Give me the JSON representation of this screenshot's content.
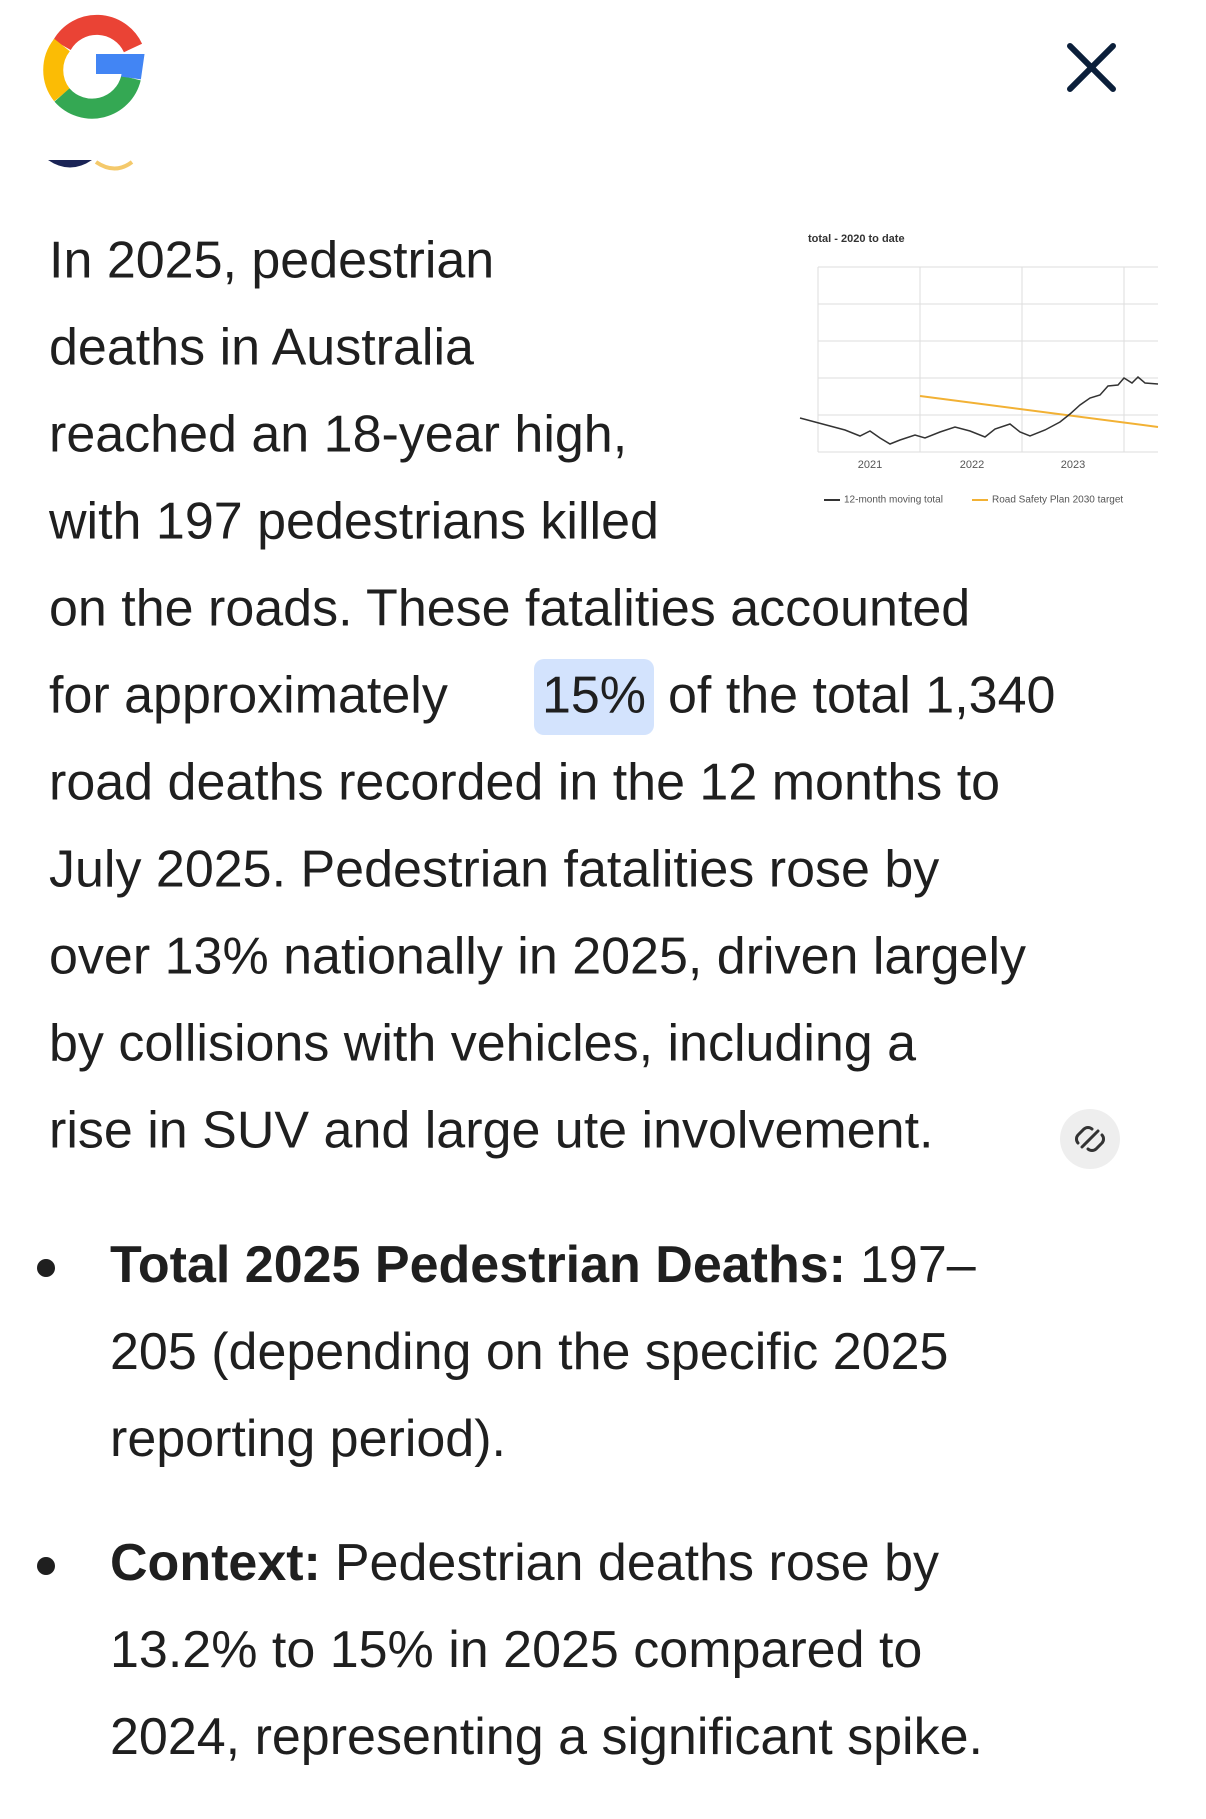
{
  "thumbnail": {
    "title": "total - 2020 to date",
    "x_labels": [
      "2021",
      "2022",
      "2023"
    ],
    "legend": [
      "12-month moving total",
      "Road Safety Plan 2030 target"
    ]
  },
  "paragraph": {
    "lines": [
      "In 2025, pedestrian",
      "deaths in Australia",
      "reached an 18-year high,",
      "with 197 pedestrians killed",
      "on the roads. These fatalities accounted",
      {
        "before": "for approximately",
        "highlight": "15%",
        "after": "of the total 1,340"
      },
      "road deaths recorded in the 12 months to",
      "July 2025. Pedestrian fatalities rose by",
      "over 13% nationally in 2025, driven largely",
      "by collisions with vehicles, including a",
      "rise in SUV and large ute involvement."
    ]
  },
  "bullets": [
    {
      "label": "Total 2025 Pedestrian Deaths:",
      "lines": [
        "197–",
        "205 (depending on the specific 2025",
        "reporting period)."
      ]
    },
    {
      "label": "Context:",
      "lines": [
        "Pedestrian deaths rose by",
        "13.2% to 15% in 2025 compared to",
        "2024, representing a significant spike."
      ]
    }
  ]
}
